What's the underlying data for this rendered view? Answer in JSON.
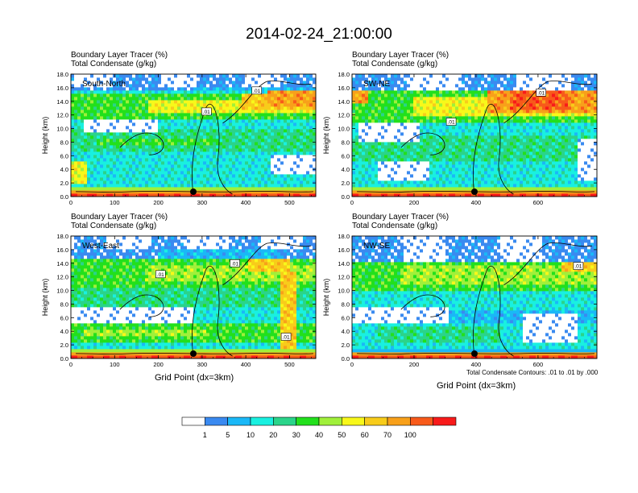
{
  "title": "2014-02-24_21:00:00",
  "field_line1": "Boundary Layer Tracer   (%)",
  "field_line2": "Total Condensate   (g/kg)",
  "xlabel": "Grid Point (dx=3km)",
  "ylabel": "Height (km)",
  "contour_note": "Total Condensate Contours: .01 to .01 by .000",
  "contour_tag": ".01",
  "colorbar": {
    "colors": [
      "#ffffff",
      "#3a8af0",
      "#1ab8f7",
      "#19f0e0",
      "#2ad48a",
      "#22e01c",
      "#a0f03a",
      "#f8f81a",
      "#f8cc1a",
      "#f8a01a",
      "#f85a1a",
      "#f81a1a"
    ],
    "labels": [
      "1",
      "5",
      "10",
      "20",
      "30",
      "40",
      "50",
      "60",
      "70",
      "100"
    ]
  },
  "chart_data": [
    {
      "type": "heatmap",
      "label": "South-North",
      "xlim": [
        0,
        560
      ],
      "ylim": [
        0,
        18
      ],
      "x_ticks": [
        "0",
        "100",
        "200",
        "300",
        "400",
        "500"
      ],
      "y_ticks": [
        "0.0",
        "2.0",
        "4.0",
        "6.0",
        "8.0",
        "10.0",
        "12.0",
        "14.0",
        "16.0",
        "18.0"
      ],
      "marker_x": 280,
      "contour_labels": [
        {
          "x": 310,
          "y": 12.5
        },
        {
          "x": 425,
          "y": 15.6
        }
      ]
    },
    {
      "type": "heatmap",
      "label": "SW-NE",
      "xlim": [
        0,
        790
      ],
      "ylim": [
        0,
        18
      ],
      "x_ticks": [
        "0",
        "200",
        "400",
        "600"
      ],
      "y_ticks": [
        "0.0",
        "2.0",
        "4.0",
        "6.0",
        "8.0",
        "10.0",
        "12.0",
        "14.0",
        "16.0",
        "18.0"
      ],
      "marker_x": 395,
      "contour_labels": [
        {
          "x": 320,
          "y": 11.0
        },
        {
          "x": 610,
          "y": 15.3
        }
      ]
    },
    {
      "type": "heatmap",
      "label": "West-East",
      "xlim": [
        0,
        560
      ],
      "ylim": [
        0,
        18
      ],
      "x_ticks": [
        "0",
        "100",
        "200",
        "300",
        "400",
        "500"
      ],
      "y_ticks": [
        "0.0",
        "2.0",
        "4.0",
        "6.0",
        "8.0",
        "10.0",
        "12.0",
        "14.0",
        "16.0",
        "18.0"
      ],
      "marker_x": 280,
      "contour_labels": [
        {
          "x": 205,
          "y": 12.4
        },
        {
          "x": 375,
          "y": 14.0
        },
        {
          "x": 492,
          "y": 3.2
        }
      ]
    },
    {
      "type": "heatmap",
      "label": "NW-SE",
      "xlim": [
        0,
        790
      ],
      "ylim": [
        0,
        18
      ],
      "x_ticks": [
        "0",
        "200",
        "400",
        "600"
      ],
      "y_ticks": [
        "0.0",
        "2.0",
        "4.0",
        "6.0",
        "8.0",
        "10.0",
        "12.0",
        "14.0",
        "16.0",
        "18.0"
      ],
      "marker_x": 395,
      "contour_labels": [
        {
          "x": 730,
          "y": 13.6
        }
      ]
    }
  ]
}
